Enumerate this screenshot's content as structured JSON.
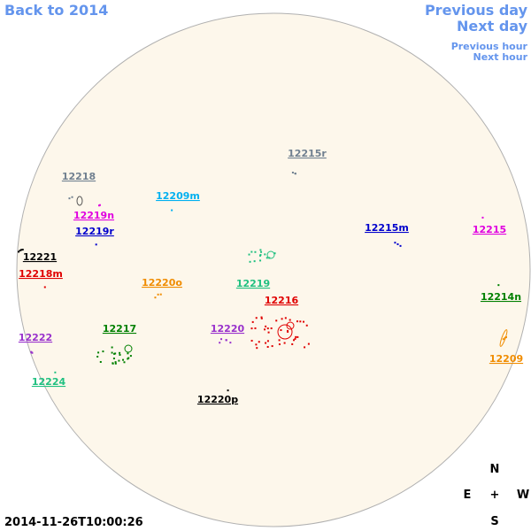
{
  "nav": {
    "back": "Back to 2014",
    "previous_day": "Previous day",
    "next_day": "Next day",
    "previous_hour": "Previous hour",
    "next_hour": "Next hour"
  },
  "timestamp": "2014-11-26T10:00:26",
  "compass": {
    "north": "N",
    "east": "E",
    "center": "+",
    "west": "W",
    "south": "S"
  },
  "regions": [
    {
      "label": "12215r",
      "color": "#708090"
    },
    {
      "label": "12218",
      "color": "#708090"
    },
    {
      "label": "12209m",
      "color": "#00b0f0"
    },
    {
      "label": "12219n",
      "color": "#e000e0"
    },
    {
      "label": "12219r",
      "color": "#0000cc"
    },
    {
      "label": "12215m",
      "color": "#0000cc"
    },
    {
      "label": "12215",
      "color": "#e000e0"
    },
    {
      "label": "12221",
      "color": "#000000"
    },
    {
      "label": "12218m",
      "color": "#e00000"
    },
    {
      "label": "12220o",
      "color": "#f08c00"
    },
    {
      "label": "12219",
      "color": "#20c080"
    },
    {
      "label": "12216",
      "color": "#e00000"
    },
    {
      "label": "12214n",
      "color": "#008000"
    },
    {
      "label": "12217",
      "color": "#008000"
    },
    {
      "label": "12220",
      "color": "#9932cc"
    },
    {
      "label": "12222",
      "color": "#9932cc"
    },
    {
      "label": "12209",
      "color": "#f08c00"
    },
    {
      "label": "12224",
      "color": "#20c080"
    },
    {
      "label": "12220p",
      "color": "#000000"
    }
  ]
}
